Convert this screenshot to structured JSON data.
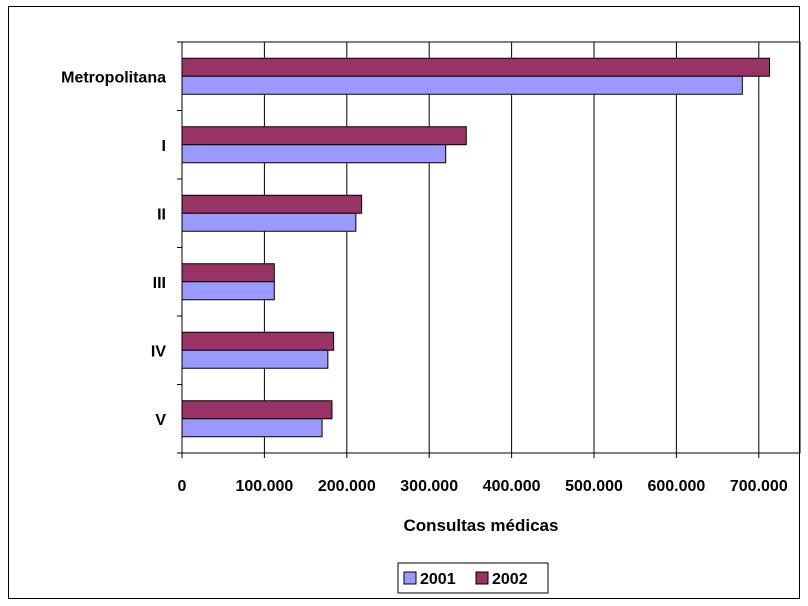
{
  "chart_data": {
    "type": "bar",
    "orientation": "horizontal",
    "categories": [
      "Metropolitana",
      "I",
      "II",
      "III",
      "IV",
      "V"
    ],
    "series": [
      {
        "name": "2001",
        "color": "#9999FF",
        "values": [
          680000,
          320000,
          211000,
          112000,
          177000,
          170000
        ]
      },
      {
        "name": "2002",
        "color": "#993366",
        "values": [
          713000,
          345000,
          218000,
          112000,
          184000,
          182000
        ]
      }
    ],
    "x_ticks": [
      "0",
      "100.000",
      "200.000",
      "300.000",
      "400.000",
      "500.000",
      "600.000",
      "700.000"
    ],
    "xlabel": "Consultas médicas",
    "ylabel": "",
    "title": "",
    "xlim": [
      0,
      750000
    ],
    "grid": "vertical",
    "legend_position": "bottom"
  }
}
